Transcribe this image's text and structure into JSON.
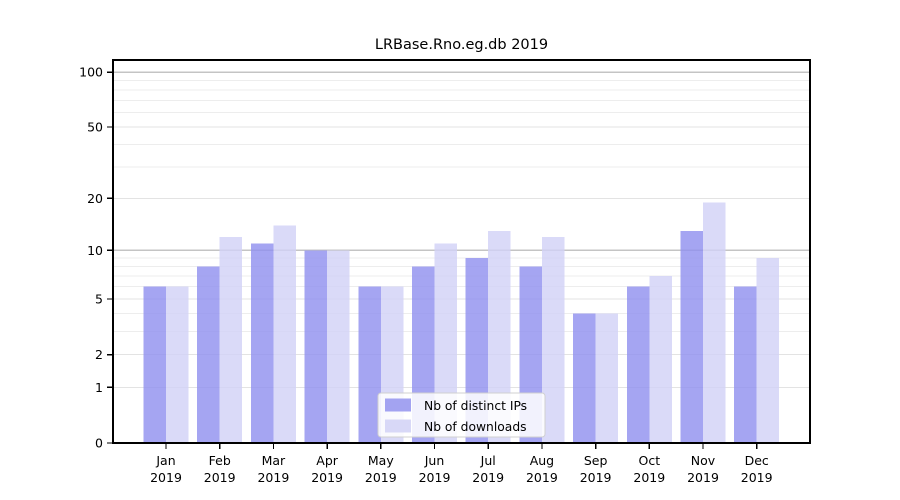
{
  "chart_data": {
    "type": "bar",
    "title": "LRBase.Rno.eg.db 2019",
    "categories": [
      "Jan",
      "Feb",
      "Mar",
      "Apr",
      "May",
      "Jun",
      "Jul",
      "Aug",
      "Sep",
      "Oct",
      "Nov",
      "Dec"
    ],
    "year_label": "2019",
    "series": [
      {
        "name": "Nb of distinct IPs",
        "color": "#9191ef",
        "legend_color": "#a3a3f1",
        "values": [
          6,
          8,
          11,
          10,
          6,
          8,
          9,
          8,
          4,
          6,
          13,
          6
        ]
      },
      {
        "name": "Nb of downloads",
        "color": "#d2d2f6",
        "legend_color": "#d8d8f7",
        "values": [
          6,
          12,
          14,
          10,
          6,
          11,
          13,
          12,
          4,
          7,
          19,
          9
        ]
      }
    ],
    "scale": "log1p",
    "ylim": [
      0,
      117
    ],
    "y_ticks": [
      0,
      1,
      2,
      5,
      10,
      20,
      50,
      100
    ],
    "y_minor_gridlines": [
      3,
      4,
      6,
      7,
      8,
      9,
      30,
      40,
      60,
      70,
      80,
      90
    ],
    "y_decade_gridlines": [
      10,
      100
    ],
    "grid": true,
    "legend_position": "lower-center",
    "colors": {
      "minor_gridline": "#ededed",
      "major_gridline": "#e3e3e3",
      "decade_gridline": "#c4c4c4",
      "spine": "#000000",
      "legend_border": "#d0d0d0",
      "legend_bg": "rgba(255,255,255,0.85)",
      "text": "#000000"
    }
  }
}
